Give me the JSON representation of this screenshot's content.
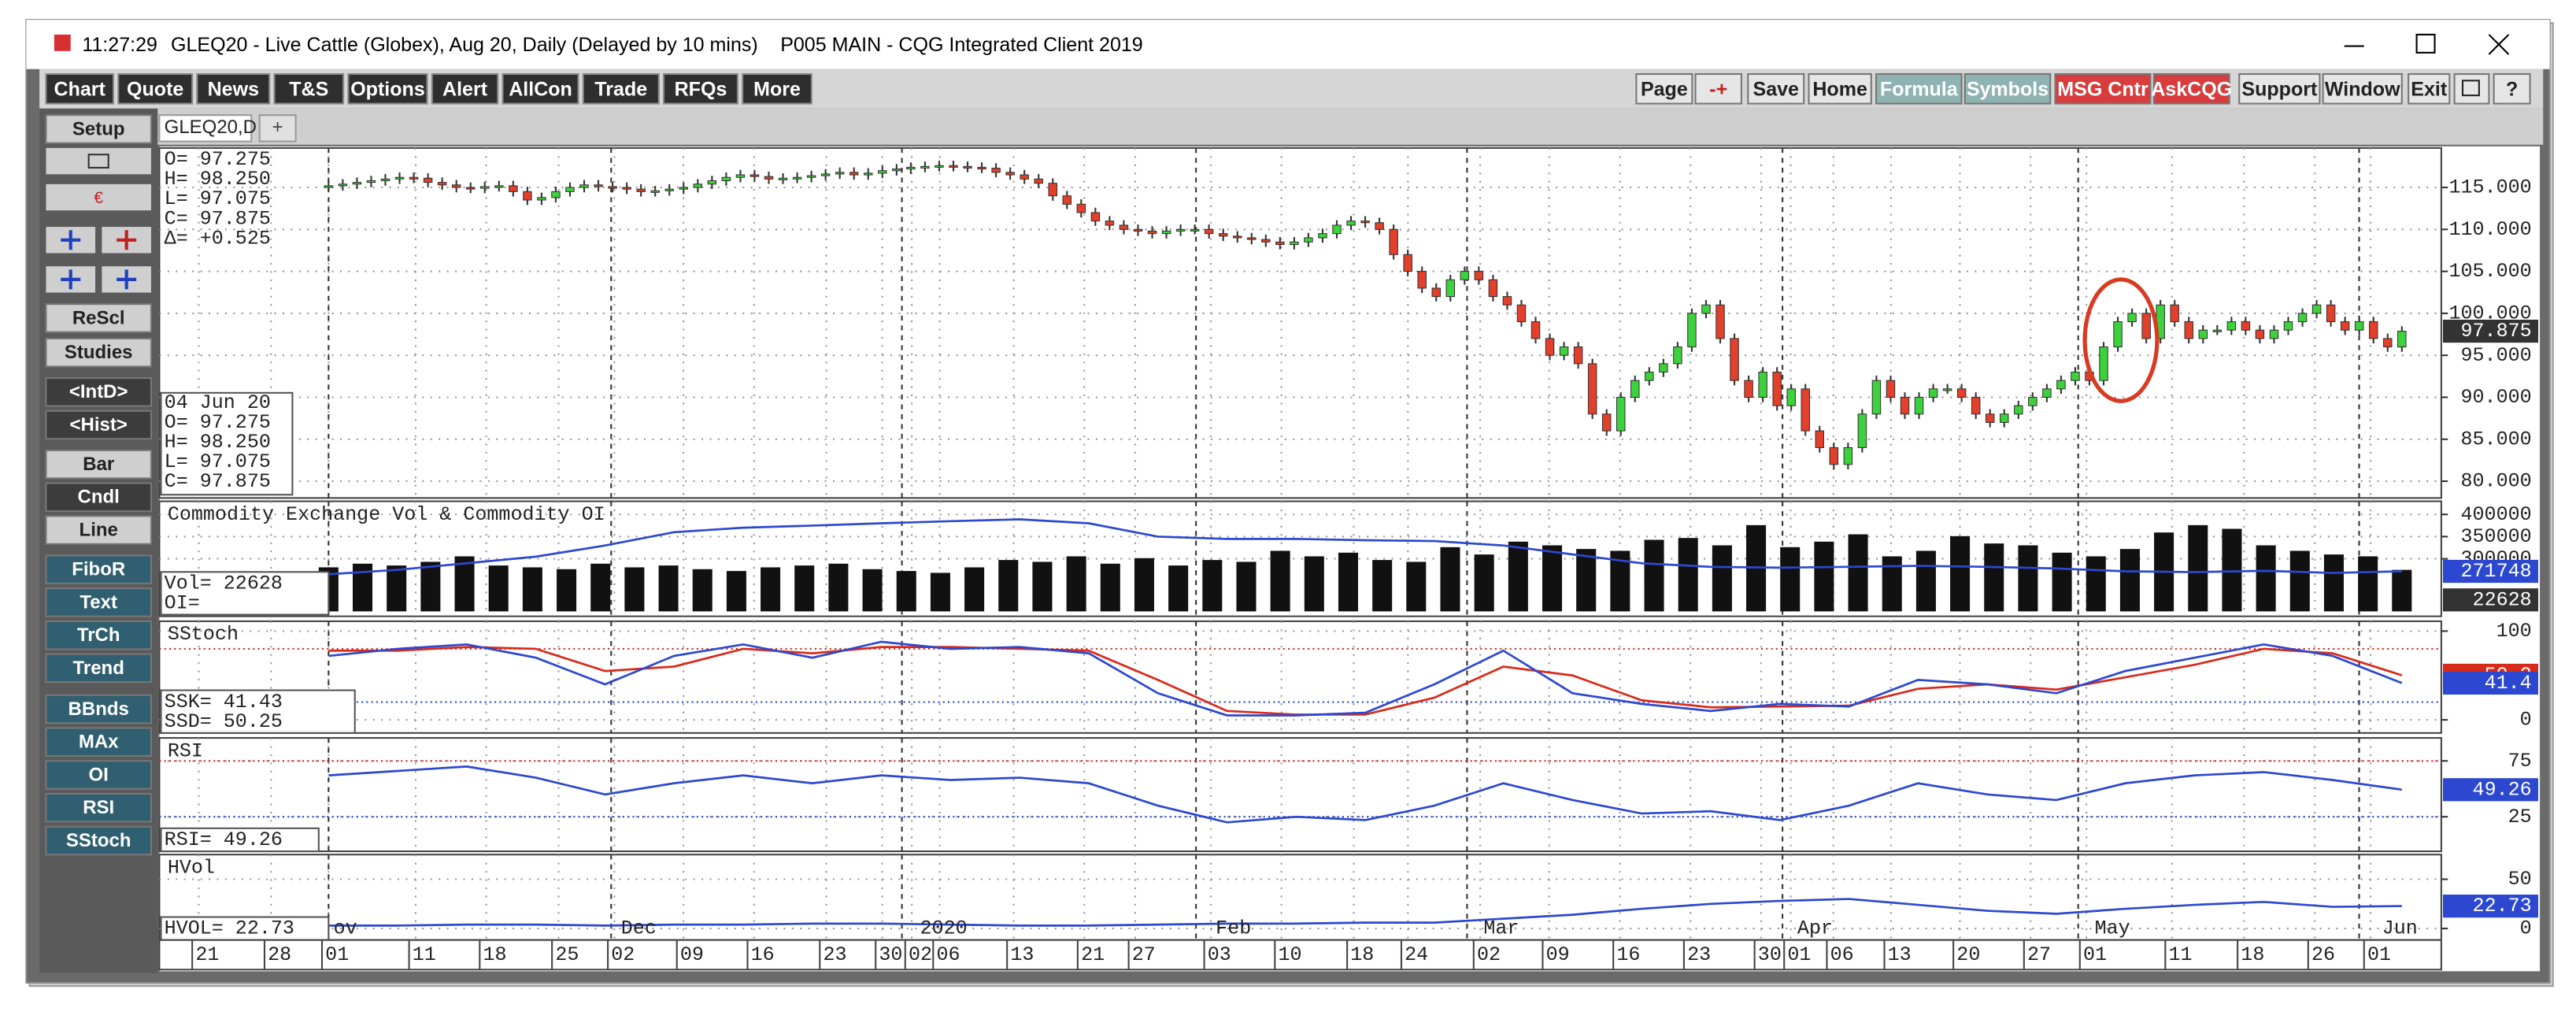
{
  "window": {
    "time": "11:27:29",
    "title": "GLEQ20 - Live Cattle (Globex), Aug 20, Daily (Delayed by 10 mins)",
    "app": "P005 MAIN - CQG Integrated Client 2019"
  },
  "toolbar": {
    "left": [
      "Chart",
      "Quote",
      "News",
      "T&S",
      "Options",
      "Alert",
      "AllCon",
      "Trade",
      "RFQs",
      "More"
    ],
    "right": [
      "Page",
      "-+",
      "Save",
      "Home",
      "Formula",
      "Symbols",
      "MSG Cntr",
      "AskCQG",
      "Support",
      "Window",
      "Exit",
      "?"
    ]
  },
  "sidebar": [
    "Setup",
    "ReScl",
    "Studies",
    "<IntD>",
    "<Hist>",
    "Bar",
    "Cndl",
    "Line",
    "FiboR",
    "Text",
    "TrCh",
    "Trend",
    "BBnds",
    "MAx",
    "OI",
    "RSI",
    "SStoch"
  ],
  "tabs": [
    "GLEQ20,D",
    "+"
  ],
  "chart": {
    "price": {
      "type": "candlestick",
      "values": [
        115.2,
        115.4,
        115.6,
        115.8,
        116.0,
        116.2,
        116.1,
        115.6,
        115.3,
        115.0,
        114.9,
        115.1,
        115.2,
        114.5,
        113.5,
        113.8,
        114.5,
        115.0,
        115.3,
        115.1,
        115.0,
        114.8,
        114.5,
        114.6,
        114.8,
        115.0,
        115.4,
        115.8,
        116.2,
        116.5,
        116.3,
        116.0,
        116.1,
        116.2,
        116.4,
        116.6,
        116.8,
        116.5,
        116.7,
        117.0,
        117.2,
        117.4,
        117.5,
        117.6,
        117.5,
        117.4,
        117.3,
        116.8,
        116.5,
        116.0,
        115.5,
        114.0,
        113.0,
        112.0,
        111.0,
        110.5,
        110.0,
        109.8,
        109.5,
        109.8,
        110.0,
        110.0,
        109.5,
        109.2,
        109.0,
        108.8,
        108.5,
        108.2,
        108.5,
        109.0,
        109.5,
        110.5,
        111.0,
        110.8,
        110.0,
        107,
        105,
        103,
        102,
        104,
        105,
        104,
        102,
        101,
        99,
        97,
        95,
        96,
        94,
        88,
        86,
        90,
        92,
        93,
        94,
        96,
        100,
        101,
        97,
        92,
        90,
        93,
        89,
        91,
        86,
        84,
        82,
        84,
        88,
        92,
        90,
        88,
        90,
        91,
        91,
        90,
        88,
        87,
        88,
        89,
        90,
        91,
        92,
        93,
        92,
        96,
        99,
        100,
        97,
        101,
        99,
        97,
        98,
        98,
        99,
        98,
        97,
        98,
        99,
        100,
        101,
        99,
        98,
        99,
        97,
        96,
        97.875
      ],
      "ylim": [
        78,
        119.7
      ],
      "yticks": [
        {
          "value": 115,
          "label": "115.000"
        },
        {
          "value": 110,
          "label": "110.000"
        },
        {
          "value": 105,
          "label": "105.000"
        },
        {
          "value": 100,
          "label": "100.000"
        },
        {
          "value": 95,
          "label": "95.000"
        },
        {
          "value": 90,
          "label": "90.000"
        },
        {
          "value": 85,
          "label": "85.000"
        },
        {
          "value": 80,
          "label": "80.000"
        }
      ],
      "quote": [
        "O=  97.275",
        "H=  98.250",
        "L=  97.075",
        "C=  97.875",
        "Δ= +0.525"
      ],
      "info": [
        "04 Jun 20",
        "O=   97.275",
        "H=   98.250",
        "L=   97.075",
        "C=   97.875"
      ]
    },
    "volume": {
      "title": "Commodity Exchange Vol & Commodity OI",
      "values": [
        24000,
        26000,
        25000,
        27000,
        30000,
        25000,
        24000,
        23000,
        26000,
        24000,
        25000,
        23000,
        22000,
        24000,
        25000,
        26000,
        23000,
        22000,
        21000,
        24000,
        28000,
        27000,
        30000,
        26000,
        29000,
        25000,
        28000,
        27000,
        33000,
        30000,
        32000,
        28000,
        27000,
        35000,
        31000,
        38000,
        36000,
        34000,
        33000,
        39000,
        40000,
        36000,
        47000,
        35000,
        38000,
        42000,
        30000,
        33000,
        41000,
        37000,
        36000,
        32000,
        30000,
        34000,
        43000,
        47000,
        45000,
        36000,
        33000,
        31000,
        30000,
        22628
      ],
      "vol_ylim": [
        0,
        60000
      ],
      "oi": [
        265000,
        275000,
        290000,
        305000,
        330000,
        360000,
        370000,
        375000,
        380000,
        385000,
        389000,
        380000,
        350000,
        345000,
        345000,
        342000,
        340000,
        330000,
        310000,
        290000,
        282000,
        280000,
        282000,
        284000,
        282000,
        278000,
        272000,
        270000,
        273000,
        268000,
        271748
      ],
      "ylim": [
        170370,
        429630
      ],
      "yticks": [
        400000,
        350000,
        300000
      ],
      "readout": [
        "Vol=     22628",
        "OI="
      ]
    },
    "stoch": {
      "title": "SStoch",
      "k": [
        72,
        80,
        85,
        70,
        40,
        72,
        85,
        70,
        88,
        80,
        82,
        75,
        30,
        5,
        5,
        8,
        40,
        78,
        30,
        18,
        10,
        18,
        15,
        45,
        40,
        30,
        55,
        70,
        85,
        72,
        41.43
      ],
      "d": [
        78,
        78,
        82,
        80,
        55,
        60,
        80,
        75,
        82,
        82,
        80,
        78,
        45,
        10,
        6,
        6,
        25,
        60,
        50,
        22,
        14,
        15,
        16,
        35,
        40,
        34,
        48,
        62,
        80,
        75,
        50.25
      ],
      "k_label": "41.4",
      "d_label": "50.2",
      "ylim": [
        -14.8,
        111.1
      ],
      "yticks": [
        100,
        0
      ],
      "levels": [
        80,
        20
      ],
      "readout": [
        "SSK=      41.43",
        "SSD=      50.25"
      ]
    },
    "rsi": {
      "title": "RSI",
      "values": [
        62,
        66,
        70,
        60,
        45,
        55,
        62,
        55,
        62,
        58,
        60,
        55,
        35,
        20,
        25,
        22,
        35,
        55,
        40,
        28,
        30,
        22,
        35,
        55,
        45,
        40,
        55,
        62,
        65,
        58,
        49.26
      ],
      "ylim": [
        -5.9,
        95.6
      ],
      "yticks": [
        75,
        25
      ],
      "levels": [
        75,
        25
      ],
      "readout": "RSI=   49.26"
    },
    "hvol": {
      "title": "HVol",
      "values": [
        3,
        3,
        4,
        4,
        3,
        4,
        4,
        5,
        5,
        4,
        3,
        3,
        4,
        5,
        5,
        6,
        6,
        10,
        14,
        20,
        25,
        28,
        30,
        24,
        18,
        15,
        20,
        24,
        27,
        22,
        22.73
      ],
      "ylim": [
        -11.7,
        75
      ],
      "yticks": [
        50,
        0
      ],
      "readout": "HVOL=   22.73"
    },
    "months": [
      "ov",
      "Dec",
      "2020",
      "Feb",
      "Mar",
      "Apr",
      "May",
      "Jun"
    ],
    "days": [
      "21",
      "28",
      "01",
      "11",
      "18",
      "25",
      "02",
      "09",
      "16",
      "23",
      "30",
      "02",
      "06",
      "13",
      "21",
      "27",
      "03",
      "10",
      "18",
      "24",
      "02",
      "09",
      "16",
      "23",
      "30",
      "01",
      "06",
      "13",
      "20",
      "27",
      "01",
      "11",
      "18",
      "26",
      "01"
    ]
  }
}
